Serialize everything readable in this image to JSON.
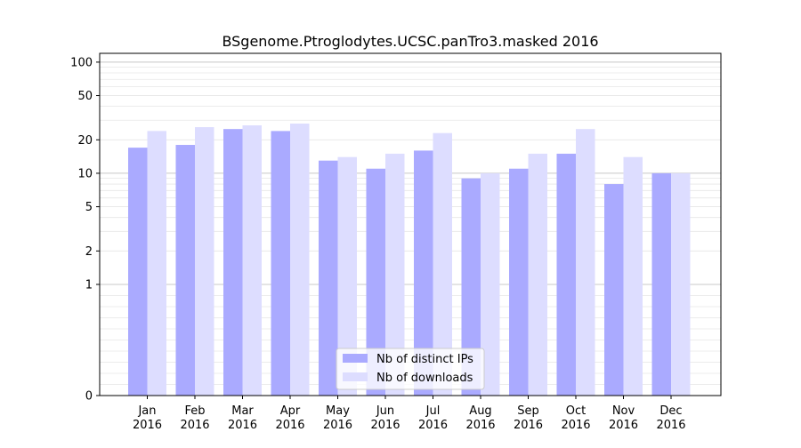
{
  "chart_data": {
    "type": "bar",
    "title": "BSgenome.Ptroglodytes.UCSC.panTro3.masked 2016",
    "xlabel": "",
    "ylabel": "",
    "categories": [
      [
        "Jan",
        "2016"
      ],
      [
        "Feb",
        "2016"
      ],
      [
        "Mar",
        "2016"
      ],
      [
        "Apr",
        "2016"
      ],
      [
        "May",
        "2016"
      ],
      [
        "Jun",
        "2016"
      ],
      [
        "Jul",
        "2016"
      ],
      [
        "Aug",
        "2016"
      ],
      [
        "Sep",
        "2016"
      ],
      [
        "Oct",
        "2016"
      ],
      [
        "Nov",
        "2016"
      ],
      [
        "Dec",
        "2016"
      ]
    ],
    "series": [
      {
        "name": "Nb of distinct IPs",
        "color": "#aaaaff",
        "values": [
          17,
          18,
          25,
          24,
          13,
          11,
          16,
          9,
          11,
          15,
          8,
          10
        ]
      },
      {
        "name": "Nb of downloads",
        "color": "#ddddff",
        "values": [
          24,
          26,
          27,
          28,
          14,
          15,
          23,
          10,
          15,
          25,
          14,
          10
        ]
      }
    ],
    "y_scale": "symlog",
    "ylim": [
      0,
      120
    ],
    "yticks": [
      0,
      1,
      2,
      5,
      10,
      20,
      50,
      100
    ],
    "ytick_labels": [
      "0",
      "1",
      "2",
      "5",
      "10",
      "20",
      "50",
      "100"
    ],
    "grid": true,
    "legend_position": "lower-center"
  }
}
